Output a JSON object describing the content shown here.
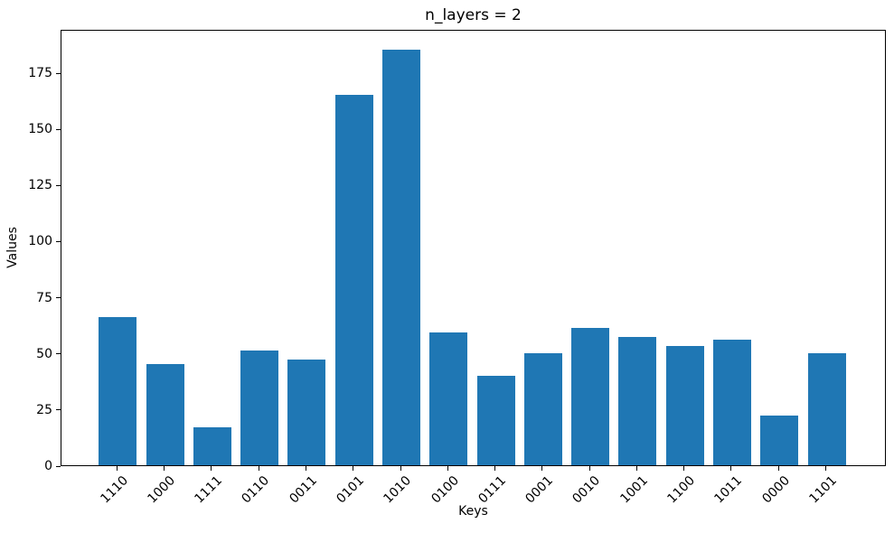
{
  "chart_data": {
    "type": "bar",
    "title": "n_layers = 2",
    "xlabel": "Keys",
    "ylabel": "Values",
    "categories": [
      "1110",
      "1000",
      "1111",
      "0110",
      "0011",
      "0101",
      "1010",
      "0100",
      "0111",
      "0001",
      "0010",
      "1001",
      "1100",
      "1011",
      "0000",
      "1101"
    ],
    "values": [
      66,
      45,
      17,
      51,
      47,
      165,
      185,
      59,
      40,
      50,
      61,
      57,
      53,
      56,
      22,
      50
    ],
    "yticks": [
      0,
      25,
      50,
      75,
      100,
      125,
      150,
      175
    ],
    "ylim": [
      0,
      194.3
    ],
    "x_tick_rotation": 45,
    "grid": false,
    "legend": null,
    "bar_color": "#1f77b4",
    "spine_color": "#000000",
    "background_color": "#ffffff"
  }
}
